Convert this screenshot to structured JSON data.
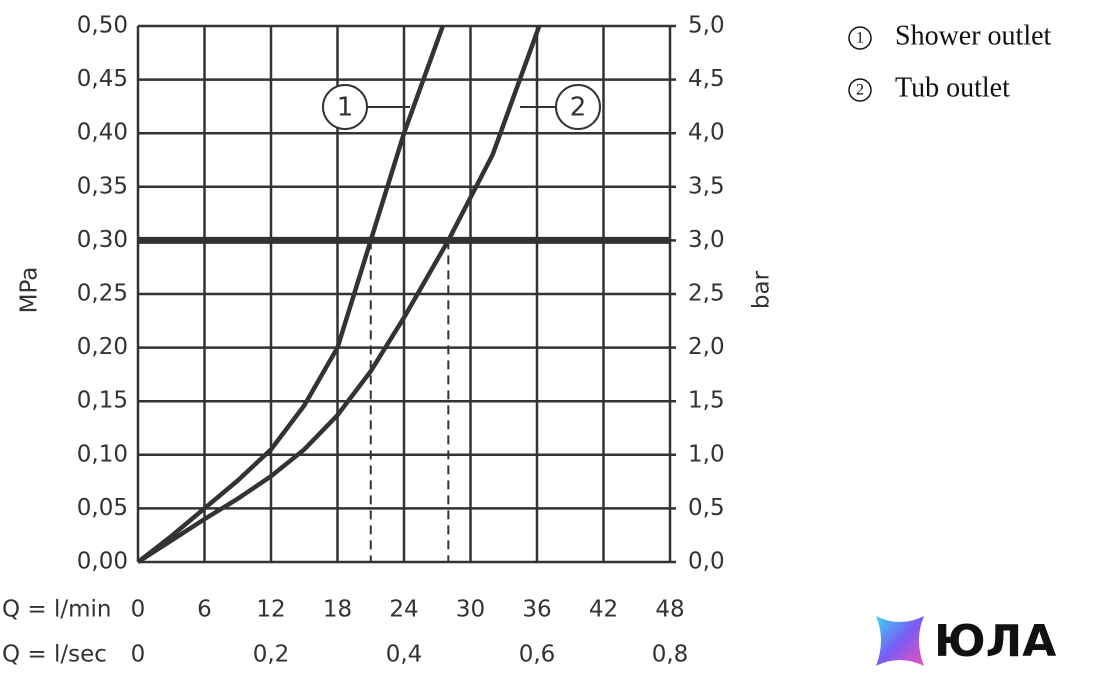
{
  "chart_data": {
    "type": "line",
    "ylabel": "MPa",
    "y2label": "bar",
    "xlabel": "Q = l/min",
    "x2label": "Q = l/sec",
    "xlim": [
      0,
      48
    ],
    "xticks": [
      0,
      6,
      12,
      18,
      24,
      30,
      36,
      42,
      48
    ],
    "x2lim": [
      0,
      0.8
    ],
    "x2ticks": [
      0,
      {
        "value": 0.2,
        "label": "0,2"
      },
      {
        "value": 0.4,
        "label": "0,4"
      },
      {
        "value": 0.6,
        "label": "0,6"
      },
      {
        "value": 0.8,
        "label": "0,8"
      }
    ],
    "ylim": [
      0,
      0.5
    ],
    "yticks": [
      {
        "value": 0,
        "label": "0,00"
      },
      {
        "value": 0.05,
        "label": "0,05"
      },
      {
        "value": 0.1,
        "label": "0,10"
      },
      {
        "value": 0.15,
        "label": "0,15"
      },
      {
        "value": 0.2,
        "label": "0,20"
      },
      {
        "value": 0.25,
        "label": "0,25"
      },
      {
        "value": 0.3,
        "label": "0,30"
      },
      {
        "value": 0.35,
        "label": "0,35"
      },
      {
        "value": 0.4,
        "label": "0,40"
      },
      {
        "value": 0.45,
        "label": "0,45"
      },
      {
        "value": 0.5,
        "label": "0,50"
      }
    ],
    "y2lim": [
      0,
      5
    ],
    "y2ticks": [
      {
        "value": 0,
        "label": "0,0"
      },
      {
        "value": 0.5,
        "label": "0,5"
      },
      {
        "value": 1,
        "label": "1,0"
      },
      {
        "value": 1.5,
        "label": "1,5"
      },
      {
        "value": 2,
        "label": "2,0"
      },
      {
        "value": 2.5,
        "label": "2,5"
      },
      {
        "value": 3,
        "label": "3,0"
      },
      {
        "value": 3.5,
        "label": "3,5"
      },
      {
        "value": 4,
        "label": "4,0"
      },
      {
        "value": 4.5,
        "label": "4,5"
      },
      {
        "value": 5,
        "label": "5,0"
      }
    ],
    "grid": true,
    "reference_line": 0.3,
    "intersection_x": [
      21,
      28
    ],
    "series": [
      {
        "name": "Shower outlet",
        "marker": "1",
        "color": "#333333",
        "x": [
          0,
          3,
          6,
          9,
          12,
          15,
          18,
          21,
          24,
          27.5
        ],
        "values": [
          0,
          0.024,
          0.05,
          0.076,
          0.105,
          0.146,
          0.2,
          0.3,
          0.4,
          0.5
        ]
      },
      {
        "name": "Tub outlet",
        "marker": "2",
        "color": "#333333",
        "x": [
          0,
          3,
          6,
          9,
          12,
          15,
          18,
          21,
          24,
          28,
          32,
          36.2
        ],
        "values": [
          0,
          0.02,
          0.04,
          0.059,
          0.08,
          0.105,
          0.137,
          0.178,
          0.228,
          0.3,
          0.38,
          0.5
        ]
      }
    ],
    "watermark": "ЮЛА"
  }
}
